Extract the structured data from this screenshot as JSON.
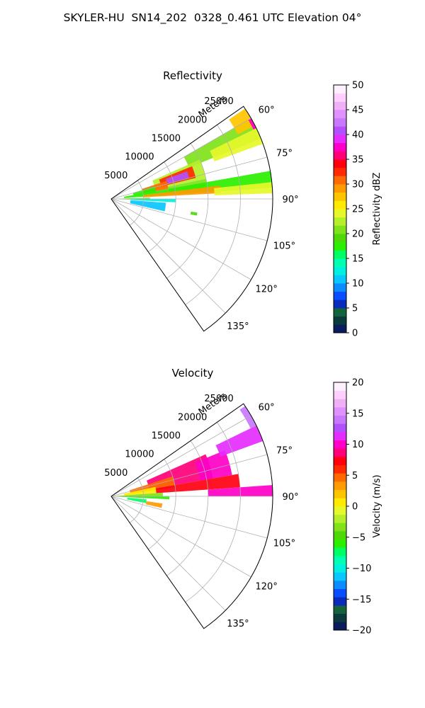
{
  "suptitle": "SKYLER-HU  SN14_202  0328_0.461 UTC Elevation 04°",
  "chart_data": [
    {
      "type": "heatmap",
      "projection": "polar-sector",
      "title": "Reflectivity",
      "range_label": "Meters",
      "range_ticks": [
        5000,
        10000,
        15000,
        20000,
        25000
      ],
      "range_tick_labels": [
        "5000",
        "10000",
        "15000",
        "20000",
        "25000"
      ],
      "rmax": 25000,
      "azimuth_range": [
        55,
        145
      ],
      "azimuth_ticks": [
        60,
        75,
        90,
        105,
        120,
        135
      ],
      "azimuth_tick_labels": [
        "60°",
        "75°",
        "90°",
        "105°",
        "120°",
        "135°"
      ],
      "grid": true,
      "colorbar": {
        "label": "Reflectivity dBZ",
        "vmin": 0,
        "vmax": 50,
        "ticks": [
          0,
          5,
          10,
          15,
          20,
          25,
          30,
          35,
          40,
          45,
          50
        ],
        "tick_labels": [
          "0",
          "5",
          "10",
          "15",
          "20",
          "25",
          "30",
          "35",
          "40",
          "45",
          "50"
        ],
        "colors": [
          "#0a1c5e",
          "#0a3a3a",
          "#13633c",
          "#0b2bbd",
          "#0a4cff",
          "#0a8cff",
          "#09c6ff",
          "#00f0e0",
          "#00ffb0",
          "#00ff64",
          "#2bef00",
          "#4ed80a",
          "#7fe21a",
          "#b5ef2a",
          "#e6f82a",
          "#ffea00",
          "#ffc400",
          "#ff9a00",
          "#ff6a00",
          "#ff2a00",
          "#ff0010",
          "#ff0078",
          "#ff00c8",
          "#e52cff",
          "#b250ff",
          "#c878ff",
          "#e090ff",
          "#f0b0f8",
          "#ffd0ff",
          "#fff0ff"
        ]
      },
      "regions": [
        {
          "az": [
            60,
            68
          ],
          "r": [
            13000,
            25000
          ],
          "value": 21
        },
        {
          "az": [
            64,
            70
          ],
          "r": [
            17000,
            25000
          ],
          "value": 24
        },
        {
          "az": [
            56,
            63
          ],
          "r": [
            22000,
            25000
          ],
          "value": 27
        },
        {
          "az": [
            60,
            64
          ],
          "r": [
            24500,
            25000
          ],
          "value": 38
        },
        {
          "az": [
            66,
            78
          ],
          "r": [
            7000,
            15000
          ],
          "value": 23
        },
        {
          "az": [
            68,
            76
          ],
          "r": [
            8000,
            13500
          ],
          "value": 33
        },
        {
          "az": [
            70,
            75
          ],
          "r": [
            9000,
            12500
          ],
          "value": 41
        },
        {
          "az": [
            72,
            80
          ],
          "r": [
            5000,
            9000
          ],
          "value": 30
        },
        {
          "az": [
            74,
            82
          ],
          "r": [
            3500,
            7000
          ],
          "value": 18
        },
        {
          "az": [
            78,
            84
          ],
          "r": [
            9000,
            15000
          ],
          "value": 21
        },
        {
          "az": [
            80,
            86
          ],
          "r": [
            2000,
            25000
          ],
          "value": 17
        },
        {
          "az": [
            83,
            87
          ],
          "r": [
            5000,
            17000
          ],
          "value": 29
        },
        {
          "az": [
            84,
            88
          ],
          "r": [
            16000,
            25000
          ],
          "value": 24
        },
        {
          "az": [
            88,
            92
          ],
          "r": [
            0,
            6000
          ],
          "value": 20
        },
        {
          "az": [
            90,
            93
          ],
          "r": [
            3000,
            10000
          ],
          "value": 12
        },
        {
          "az": [
            94,
            103
          ],
          "r": [
            3000,
            8500
          ],
          "value": 11
        },
        {
          "az": [
            99,
            101
          ],
          "r": [
            12500,
            13500
          ],
          "value": 19
        }
      ]
    },
    {
      "type": "heatmap",
      "projection": "polar-sector",
      "title": "Velocity",
      "range_label": "Meters",
      "range_ticks": [
        5000,
        10000,
        15000,
        20000,
        25000
      ],
      "range_tick_labels": [
        "5000",
        "10000",
        "15000",
        "20000",
        "25000"
      ],
      "rmax": 25000,
      "azimuth_range": [
        55,
        145
      ],
      "azimuth_ticks": [
        60,
        75,
        90,
        105,
        120,
        135
      ],
      "azimuth_tick_labels": [
        "60°",
        "75°",
        "90°",
        "105°",
        "120°",
        "135°"
      ],
      "grid": true,
      "colorbar": {
        "label": "Velocity (m/s)",
        "vmin": -20,
        "vmax": 20,
        "ticks": [
          -20,
          -15,
          -10,
          -5,
          0,
          5,
          10,
          15,
          20
        ],
        "tick_labels": [
          "−20",
          "−15",
          "−10",
          "−5",
          "0",
          "5",
          "10",
          "15",
          "20"
        ],
        "colors": [
          "#0a1c5e",
          "#0a3a3a",
          "#13633c",
          "#0b2bbd",
          "#0a4cff",
          "#0a8cff",
          "#09c6ff",
          "#00f0e0",
          "#00ffb0",
          "#00ff64",
          "#2bef00",
          "#4ed80a",
          "#7fe21a",
          "#b5ef2a",
          "#e6f82a",
          "#ffea00",
          "#ffc400",
          "#ff9a00",
          "#ff6a00",
          "#ff2a00",
          "#ff0010",
          "#ff0078",
          "#ff00c8",
          "#e52cff",
          "#b250ff",
          "#c878ff",
          "#e090ff",
          "#f0b0f8",
          "#ffd0ff",
          "#fff0ff"
        ]
      },
      "regions": [
        {
          "az": [
            66,
            80
          ],
          "r": [
            6000,
            16000
          ],
          "value": 8
        },
        {
          "az": [
            68,
            80
          ],
          "r": [
            14000,
            19000
          ],
          "value": 10
        },
        {
          "az": [
            72,
            82
          ],
          "r": [
            3000,
            10000
          ],
          "value": 4
        },
        {
          "az": [
            78,
            86
          ],
          "r": [
            2000,
            7000
          ],
          "value": 1
        },
        {
          "az": [
            80,
            86
          ],
          "r": [
            7000,
            20000
          ],
          "value": 7
        },
        {
          "az": [
            86,
            90
          ],
          "r": [
            15000,
            25000
          ],
          "value": 10
        },
        {
          "az": [
            64,
            70
          ],
          "r": [
            18000,
            25000
          ],
          "value": 11
        },
        {
          "az": [
            56,
            64
          ],
          "r": [
            24000,
            25000
          ],
          "value": 14
        },
        {
          "az": [
            86,
            90
          ],
          "r": [
            0,
            8000
          ],
          "value": -4
        },
        {
          "az": [
            90,
            93
          ],
          "r": [
            1000,
            9000
          ],
          "value": -6
        },
        {
          "az": [
            95,
            101
          ],
          "r": [
            2500,
            5500
          ],
          "value": -8
        },
        {
          "az": [
            98,
            103
          ],
          "r": [
            5500,
            8000
          ],
          "value": 3
        }
      ]
    }
  ]
}
